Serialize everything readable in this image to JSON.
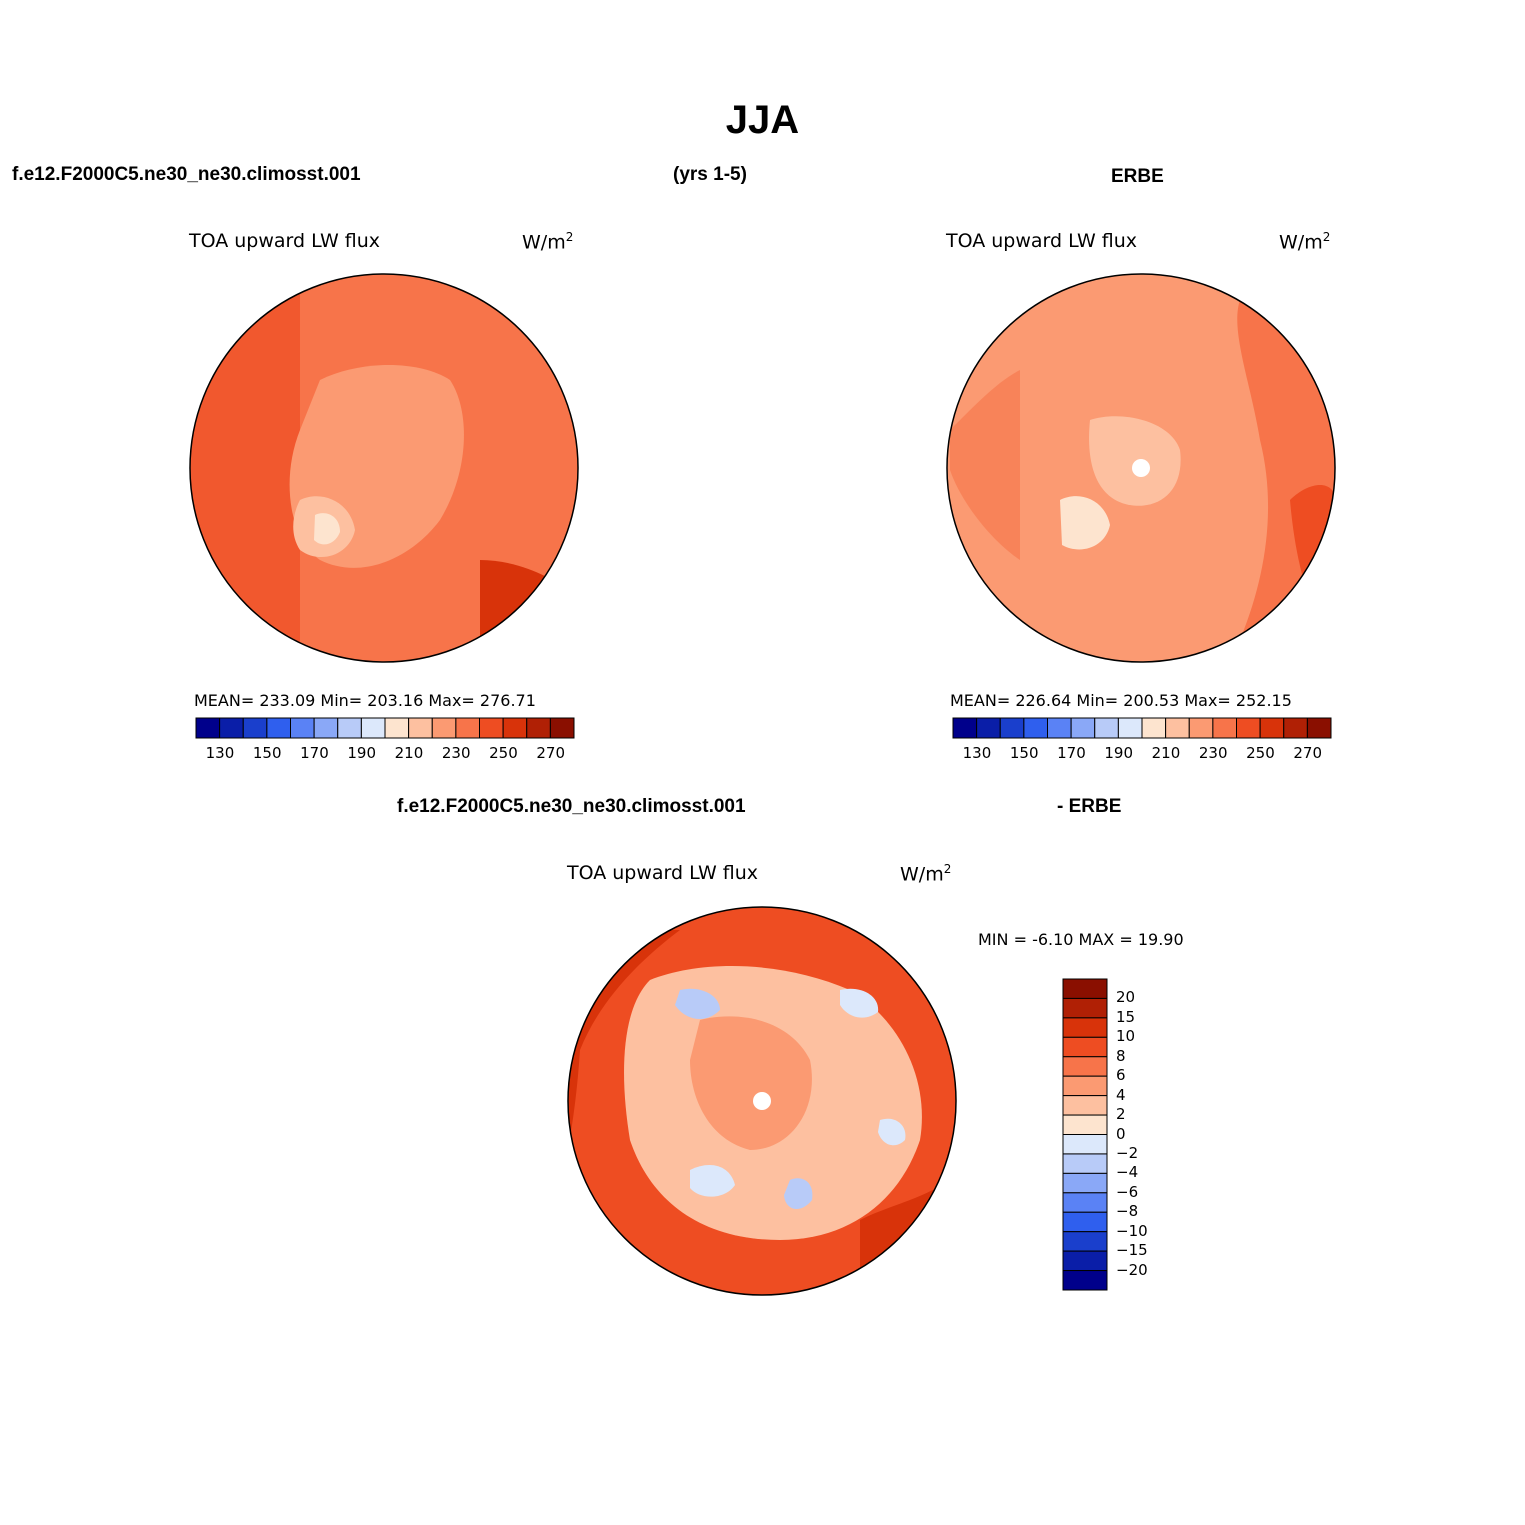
{
  "title": "JJA",
  "header_left_case": "f.e12.F2000C5.ne30_ne30.climosst.001",
  "header_years": "(yrs 1-5)",
  "header_right": "ERBE",
  "diff_header_left": "f.e12.F2000C5.ne30_ne30.climosst.001",
  "diff_header_right": "- ERBE",
  "colors": {
    "blue_red_14": [
      "#00008b",
      "#0a1ea8",
      "#1a3fcc",
      "#2f5fee",
      "#5a82f5",
      "#8aa8f7",
      "#b8cbf8",
      "#dce8fb",
      "#fde4cf",
      "#fdc0a0",
      "#fb9a72",
      "#f7744a",
      "#ee4d22",
      "#d8330a",
      "#b02005",
      "#8a0f00"
    ],
    "coast": "#000000"
  },
  "panels": [
    {
      "id": "model",
      "variable": "TOA upward LW flux",
      "units": "W/m",
      "units_sup": "2",
      "stats": "MEAN= 233.09   Min= 203.16   Max= 276.71",
      "mean": 233.09,
      "min": 203.16,
      "max": 276.71,
      "colorbar_ticks": [
        "130",
        "150",
        "170",
        "190",
        "210",
        "230",
        "250",
        "270"
      ],
      "colorbar_levels": [
        120,
        130,
        140,
        150,
        160,
        170,
        180,
        190,
        200,
        210,
        220,
        230,
        240,
        250,
        260,
        270,
        280
      ]
    },
    {
      "id": "obs",
      "variable": "TOA upward LW flux",
      "units": "W/m",
      "units_sup": "2",
      "stats": "MEAN= 226.64   Min= 200.53   Max= 252.15",
      "mean": 226.64,
      "min": 200.53,
      "max": 252.15,
      "colorbar_ticks": [
        "130",
        "150",
        "170",
        "190",
        "210",
        "230",
        "250",
        "270"
      ],
      "colorbar_levels": [
        120,
        130,
        140,
        150,
        160,
        170,
        180,
        190,
        200,
        210,
        220,
        230,
        240,
        250,
        260,
        270,
        280
      ]
    },
    {
      "id": "diff",
      "variable": "TOA upward LW flux",
      "units": "W/m",
      "units_sup": "2",
      "stats": "MIN =   -6.10 MAX =   19.90",
      "min": -6.1,
      "max": 19.9,
      "colorbar_ticks": [
        "20",
        "15",
        "10",
        "8",
        "6",
        "4",
        "2",
        "0",
        "−2",
        "−4",
        "−6",
        "−8",
        "−10",
        "−15",
        "−20"
      ]
    }
  ]
}
